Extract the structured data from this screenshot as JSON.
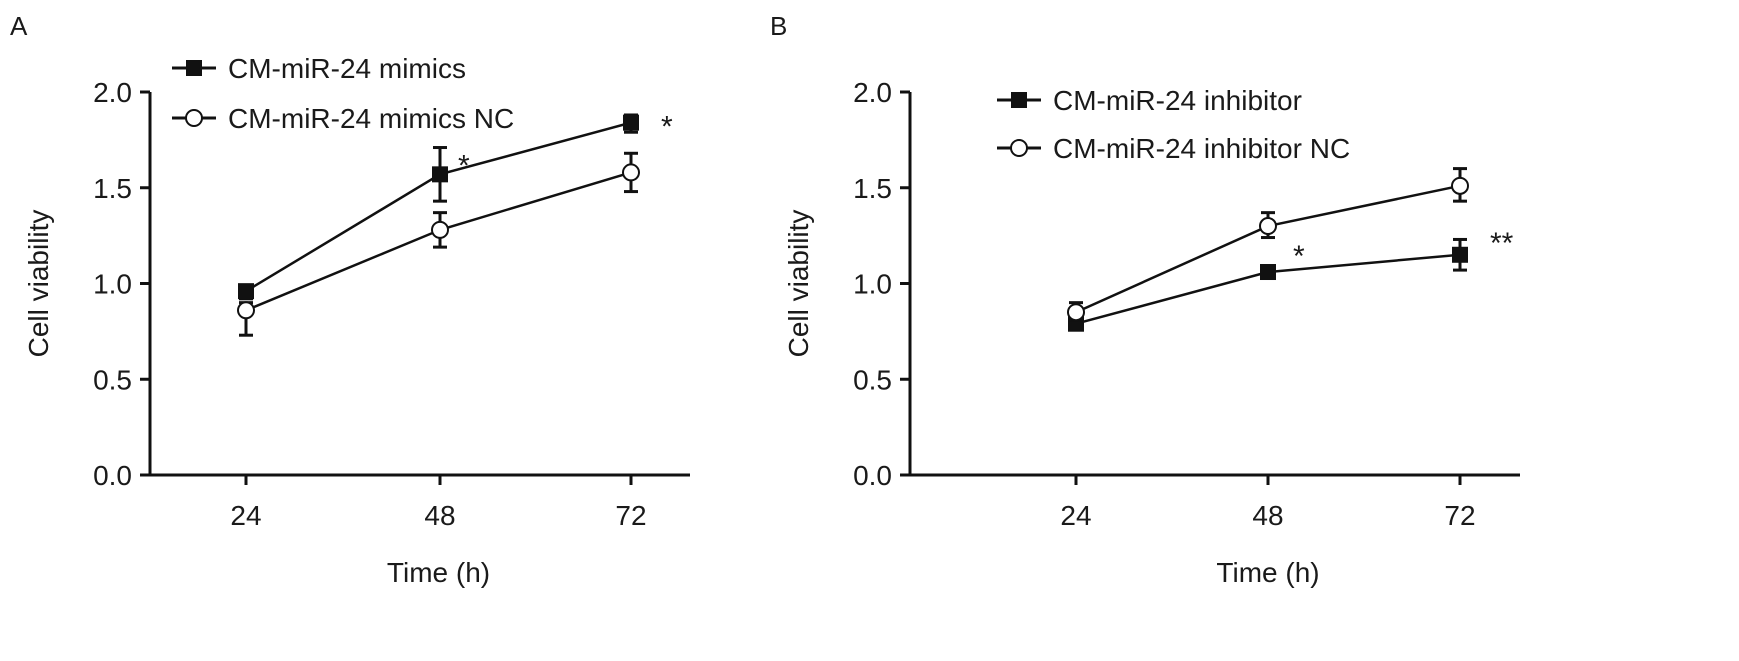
{
  "chart_data": [
    {
      "panel_label": "A",
      "type": "line",
      "xlabel": "Time (h)",
      "ylabel": "Cell viability",
      "categories": [
        "24",
        "48",
        "72"
      ],
      "ylim": [
        0,
        2.0
      ],
      "yticks": [
        "0.0",
        "0.5",
        "1.0",
        "1.5",
        "2.0"
      ],
      "grid": false,
      "legend_position": "top-left",
      "series": [
        {
          "name": "CM-miR-24 mimics",
          "marker": "filled-square",
          "values": [
            0.96,
            1.57,
            1.84
          ],
          "err_low": [
            0.92,
            1.43,
            1.79
          ],
          "err_high": [
            0.99,
            1.71,
            1.88
          ]
        },
        {
          "name": "CM-miR-24 mimics NC",
          "marker": "open-circle",
          "values": [
            0.86,
            1.28,
            1.58
          ],
          "err_low": [
            0.73,
            1.19,
            1.48
          ],
          "err_high": [
            0.9,
            1.37,
            1.68
          ]
        }
      ],
      "annotations": [
        {
          "text": "*",
          "x": "48"
        },
        {
          "text": "*",
          "x": "72"
        }
      ]
    },
    {
      "panel_label": "B",
      "type": "line",
      "xlabel": "Time (h)",
      "ylabel": "Cell viability",
      "categories": [
        "24",
        "48",
        "72"
      ],
      "ylim": [
        0,
        2.0
      ],
      "yticks": [
        "0.0",
        "0.5",
        "1.0",
        "1.5",
        "2.0"
      ],
      "grid": false,
      "legend_position": "top-left",
      "series": [
        {
          "name": "CM-miR-24 inhibitor",
          "marker": "filled-square",
          "values": [
            0.79,
            1.06,
            1.15
          ],
          "err_low": [
            0.76,
            1.03,
            1.07
          ],
          "err_high": [
            0.82,
            1.09,
            1.23
          ]
        },
        {
          "name": "CM-miR-24 inhibitor NC",
          "marker": "open-circle",
          "values": [
            0.85,
            1.3,
            1.51
          ],
          "err_low": [
            0.81,
            1.24,
            1.43
          ],
          "err_high": [
            0.9,
            1.37,
            1.6
          ]
        }
      ],
      "annotations": [
        {
          "text": "*",
          "x": "48"
        },
        {
          "text": "**",
          "x": "72"
        }
      ]
    }
  ]
}
